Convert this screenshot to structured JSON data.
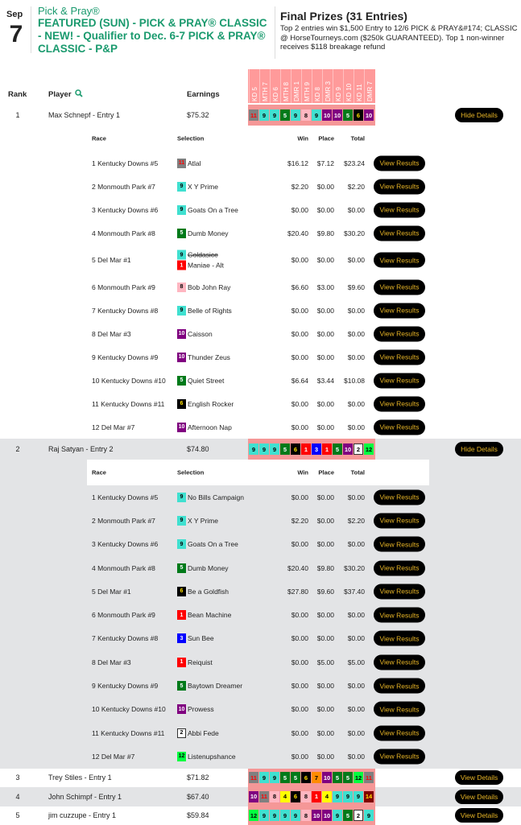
{
  "header": {
    "month": "Sep",
    "day": "7",
    "brand": "Pick & Pray®",
    "title": "FEATURED (SUN) - PICK & PRAY® CLASSIC - NEW! - Qualifier to Dec. 6-7 PICK & PRAY® CLASSIC - P&P",
    "prizes_title": "Final Prizes (31 Entries)",
    "prizes_desc": "Top 2 entries win $1,500 Entry to 12/6 PICK & PRAY&#174; CLASSIC @ HorseTourneys.com ($250k GUARANTEED). Top 1 non-winner receives $118 breakage refund"
  },
  "columns": {
    "rank": "Rank",
    "player": "Player",
    "earnings": "Earnings",
    "search_icon": "magnifier-icon"
  },
  "races": [
    "KD 5",
    "MTH 7",
    "KD 6",
    "MTH 8",
    "DMR 1",
    "MTH 9",
    "KD 8",
    "DMR 3",
    "KD 9",
    "KD 10",
    "KD 11",
    "DMR 7"
  ],
  "detail_columns": {
    "race": "Race",
    "selection": "Selection",
    "win": "Win",
    "place": "Place",
    "total": "Total"
  },
  "labels": {
    "hide": "Hide Details",
    "view": "View Details",
    "results": "View Results"
  },
  "saddle_colors": {
    "1": [
      "#ff0000",
      "#fff"
    ],
    "2": [
      "#ffffff",
      "#000"
    ],
    "3": [
      "#0000ff",
      "#fff"
    ],
    "4": [
      "#ffff00",
      "#000"
    ],
    "5": [
      "#007a1a",
      "#fff"
    ],
    "6": [
      "#000000",
      "#ffe000"
    ],
    "7": [
      "#ff8c00",
      "#000"
    ],
    "8": [
      "#ffb6c1",
      "#000"
    ],
    "9": [
      "#40e0d0",
      "#000"
    ],
    "10": [
      "#800080",
      "#fff"
    ],
    "11": [
      "#808080",
      "#ff0000"
    ],
    "12": [
      "#00ff40",
      "#000"
    ],
    "14": [
      "#800000",
      "#ffe000"
    ]
  },
  "entries": [
    {
      "rank": "1",
      "player": "Max Schnepf - Entry 1",
      "earnings": "$75.32",
      "picks": [
        "11",
        "9",
        "9",
        "5",
        "9",
        "8",
        "9",
        "10",
        "10",
        "5",
        "6",
        "10"
      ],
      "expanded": true,
      "details": [
        {
          "race": "1 Kentucky Downs #5",
          "sel": [
            {
              "num": "11",
              "name": "Atlal"
            }
          ],
          "win": "$16.12",
          "place": "$7.12",
          "total": "$23.24"
        },
        {
          "race": "2 Monmouth Park #7",
          "sel": [
            {
              "num": "9",
              "name": "X Y Prime"
            }
          ],
          "win": "$2.20",
          "place": "$0.00",
          "total": "$2.20"
        },
        {
          "race": "3 Kentucky Downs #6",
          "sel": [
            {
              "num": "9",
              "name": "Goats On a Tree"
            }
          ],
          "win": "$0.00",
          "place": "$0.00",
          "total": "$0.00"
        },
        {
          "race": "4 Monmouth Park #8",
          "sel": [
            {
              "num": "5",
              "name": "Dumb Money"
            }
          ],
          "win": "$20.40",
          "place": "$9.80",
          "total": "$30.20"
        },
        {
          "race": "5 Del Mar #1",
          "sel": [
            {
              "num": "9",
              "name": "Goldasice",
              "scratched": true
            },
            {
              "num": "1",
              "name": "Maniae - Alt"
            }
          ],
          "win": "$0.00",
          "place": "$0.00",
          "total": "$0.00"
        },
        {
          "race": "6 Monmouth Park #9",
          "sel": [
            {
              "num": "8",
              "name": "Bob John Ray"
            }
          ],
          "win": "$6.60",
          "place": "$3.00",
          "total": "$9.60"
        },
        {
          "race": "7 Kentucky Downs #8",
          "sel": [
            {
              "num": "9",
              "name": "Belle of Rights"
            }
          ],
          "win": "$0.00",
          "place": "$0.00",
          "total": "$0.00"
        },
        {
          "race": "8 Del Mar #3",
          "sel": [
            {
              "num": "10",
              "name": "Caisson"
            }
          ],
          "win": "$0.00",
          "place": "$0.00",
          "total": "$0.00"
        },
        {
          "race": "9 Kentucky Downs #9",
          "sel": [
            {
              "num": "10",
              "name": "Thunder Zeus"
            }
          ],
          "win": "$0.00",
          "place": "$0.00",
          "total": "$0.00"
        },
        {
          "race": "10 Kentucky Downs #10",
          "sel": [
            {
              "num": "5",
              "name": "Quiet Street"
            }
          ],
          "win": "$6.64",
          "place": "$3.44",
          "total": "$10.08"
        },
        {
          "race": "11 Kentucky Downs #11",
          "sel": [
            {
              "num": "6",
              "name": "English Rocker"
            }
          ],
          "win": "$0.00",
          "place": "$0.00",
          "total": "$0.00"
        },
        {
          "race": "12 Del Mar #7",
          "sel": [
            {
              "num": "10",
              "name": "Afternoon Nap"
            }
          ],
          "win": "$0.00",
          "place": "$0.00",
          "total": "$0.00"
        }
      ]
    },
    {
      "rank": "2",
      "player": "Raj Satyan - Entry 2",
      "earnings": "$74.80",
      "picks": [
        "9",
        "9",
        "9",
        "5",
        "6",
        "1",
        "3",
        "1",
        "5",
        "10",
        "2",
        "12"
      ],
      "expanded": true,
      "details": [
        {
          "race": "1 Kentucky Downs #5",
          "sel": [
            {
              "num": "9",
              "name": "No Bills Campaign"
            }
          ],
          "win": "$0.00",
          "place": "$0.00",
          "total": "$0.00"
        },
        {
          "race": "2 Monmouth Park #7",
          "sel": [
            {
              "num": "9",
              "name": "X Y Prime"
            }
          ],
          "win": "$2.20",
          "place": "$0.00",
          "total": "$2.20"
        },
        {
          "race": "3 Kentucky Downs #6",
          "sel": [
            {
              "num": "9",
              "name": "Goats On a Tree"
            }
          ],
          "win": "$0.00",
          "place": "$0.00",
          "total": "$0.00"
        },
        {
          "race": "4 Monmouth Park #8",
          "sel": [
            {
              "num": "5",
              "name": "Dumb Money"
            }
          ],
          "win": "$20.40",
          "place": "$9.80",
          "total": "$30.20"
        },
        {
          "race": "5 Del Mar #1",
          "sel": [
            {
              "num": "6",
              "name": "Be a Goldfish"
            }
          ],
          "win": "$27.80",
          "place": "$9.60",
          "total": "$37.40"
        },
        {
          "race": "6 Monmouth Park #9",
          "sel": [
            {
              "num": "1",
              "name": "Bean Machine"
            }
          ],
          "win": "$0.00",
          "place": "$0.00",
          "total": "$0.00"
        },
        {
          "race": "7 Kentucky Downs #8",
          "sel": [
            {
              "num": "3",
              "name": "Sun Bee"
            }
          ],
          "win": "$0.00",
          "place": "$0.00",
          "total": "$0.00"
        },
        {
          "race": "8 Del Mar #3",
          "sel": [
            {
              "num": "1",
              "name": "Reiquist"
            }
          ],
          "win": "$0.00",
          "place": "$5.00",
          "total": "$5.00"
        },
        {
          "race": "9 Kentucky Downs #9",
          "sel": [
            {
              "num": "5",
              "name": "Baytown Dreamer"
            }
          ],
          "win": "$0.00",
          "place": "$0.00",
          "total": "$0.00"
        },
        {
          "race": "10 Kentucky Downs #10",
          "sel": [
            {
              "num": "10",
              "name": "Prowess"
            }
          ],
          "win": "$0.00",
          "place": "$0.00",
          "total": "$0.00"
        },
        {
          "race": "11 Kentucky Downs #11",
          "sel": [
            {
              "num": "2",
              "name": "Abbi Fede"
            }
          ],
          "win": "$0.00",
          "place": "$0.00",
          "total": "$0.00"
        },
        {
          "race": "12 Del Mar #7",
          "sel": [
            {
              "num": "12",
              "name": "Listenupshance"
            }
          ],
          "win": "$0.00",
          "place": "$0.00",
          "total": "$0.00"
        }
      ]
    },
    {
      "rank": "3",
      "player": "Trey Stiles - Entry 1",
      "earnings": "$71.82",
      "picks": [
        "11",
        "9",
        "9",
        "5",
        "5",
        "6",
        "7",
        "10",
        "5",
        "5",
        "12",
        "11"
      ],
      "expanded": false
    },
    {
      "rank": "4",
      "player": "John Schimpf - Entry 1",
      "earnings": "$67.40",
      "picks": [
        "10",
        "11",
        "8",
        "4",
        "6",
        "8",
        "1",
        "4",
        "9",
        "9",
        "9",
        "14"
      ],
      "expanded": false
    },
    {
      "rank": "5",
      "player": "jim cuzzupe - Entry 1",
      "earnings": "$59.84",
      "picks": [
        "12",
        "9",
        "9",
        "9",
        "9",
        "8",
        "10",
        "10",
        "9",
        "5",
        "2",
        "9"
      ],
      "expanded": false
    }
  ]
}
